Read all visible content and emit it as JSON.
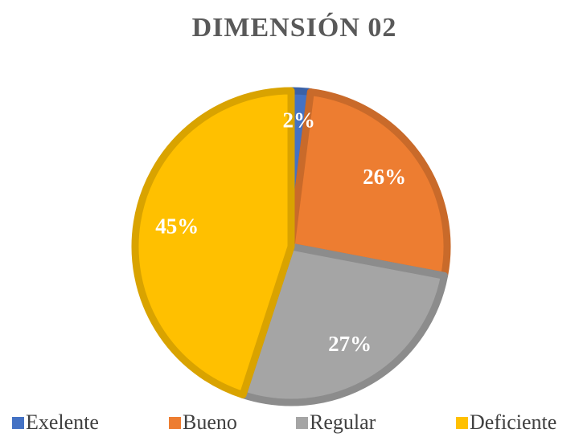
{
  "chart_data": {
    "type": "pie",
    "title": "DIMENSIÓN 02",
    "categories": [
      "Exelente",
      "Bueno",
      "Regular",
      "Deficiente"
    ],
    "values": [
      2,
      26,
      27,
      45
    ],
    "value_labels": [
      "2%",
      "26%",
      "27%",
      "45%"
    ],
    "colors": [
      "#4472c4",
      "#ed7d31",
      "#a5a5a5",
      "#ffc000"
    ],
    "legend": "bottom"
  }
}
